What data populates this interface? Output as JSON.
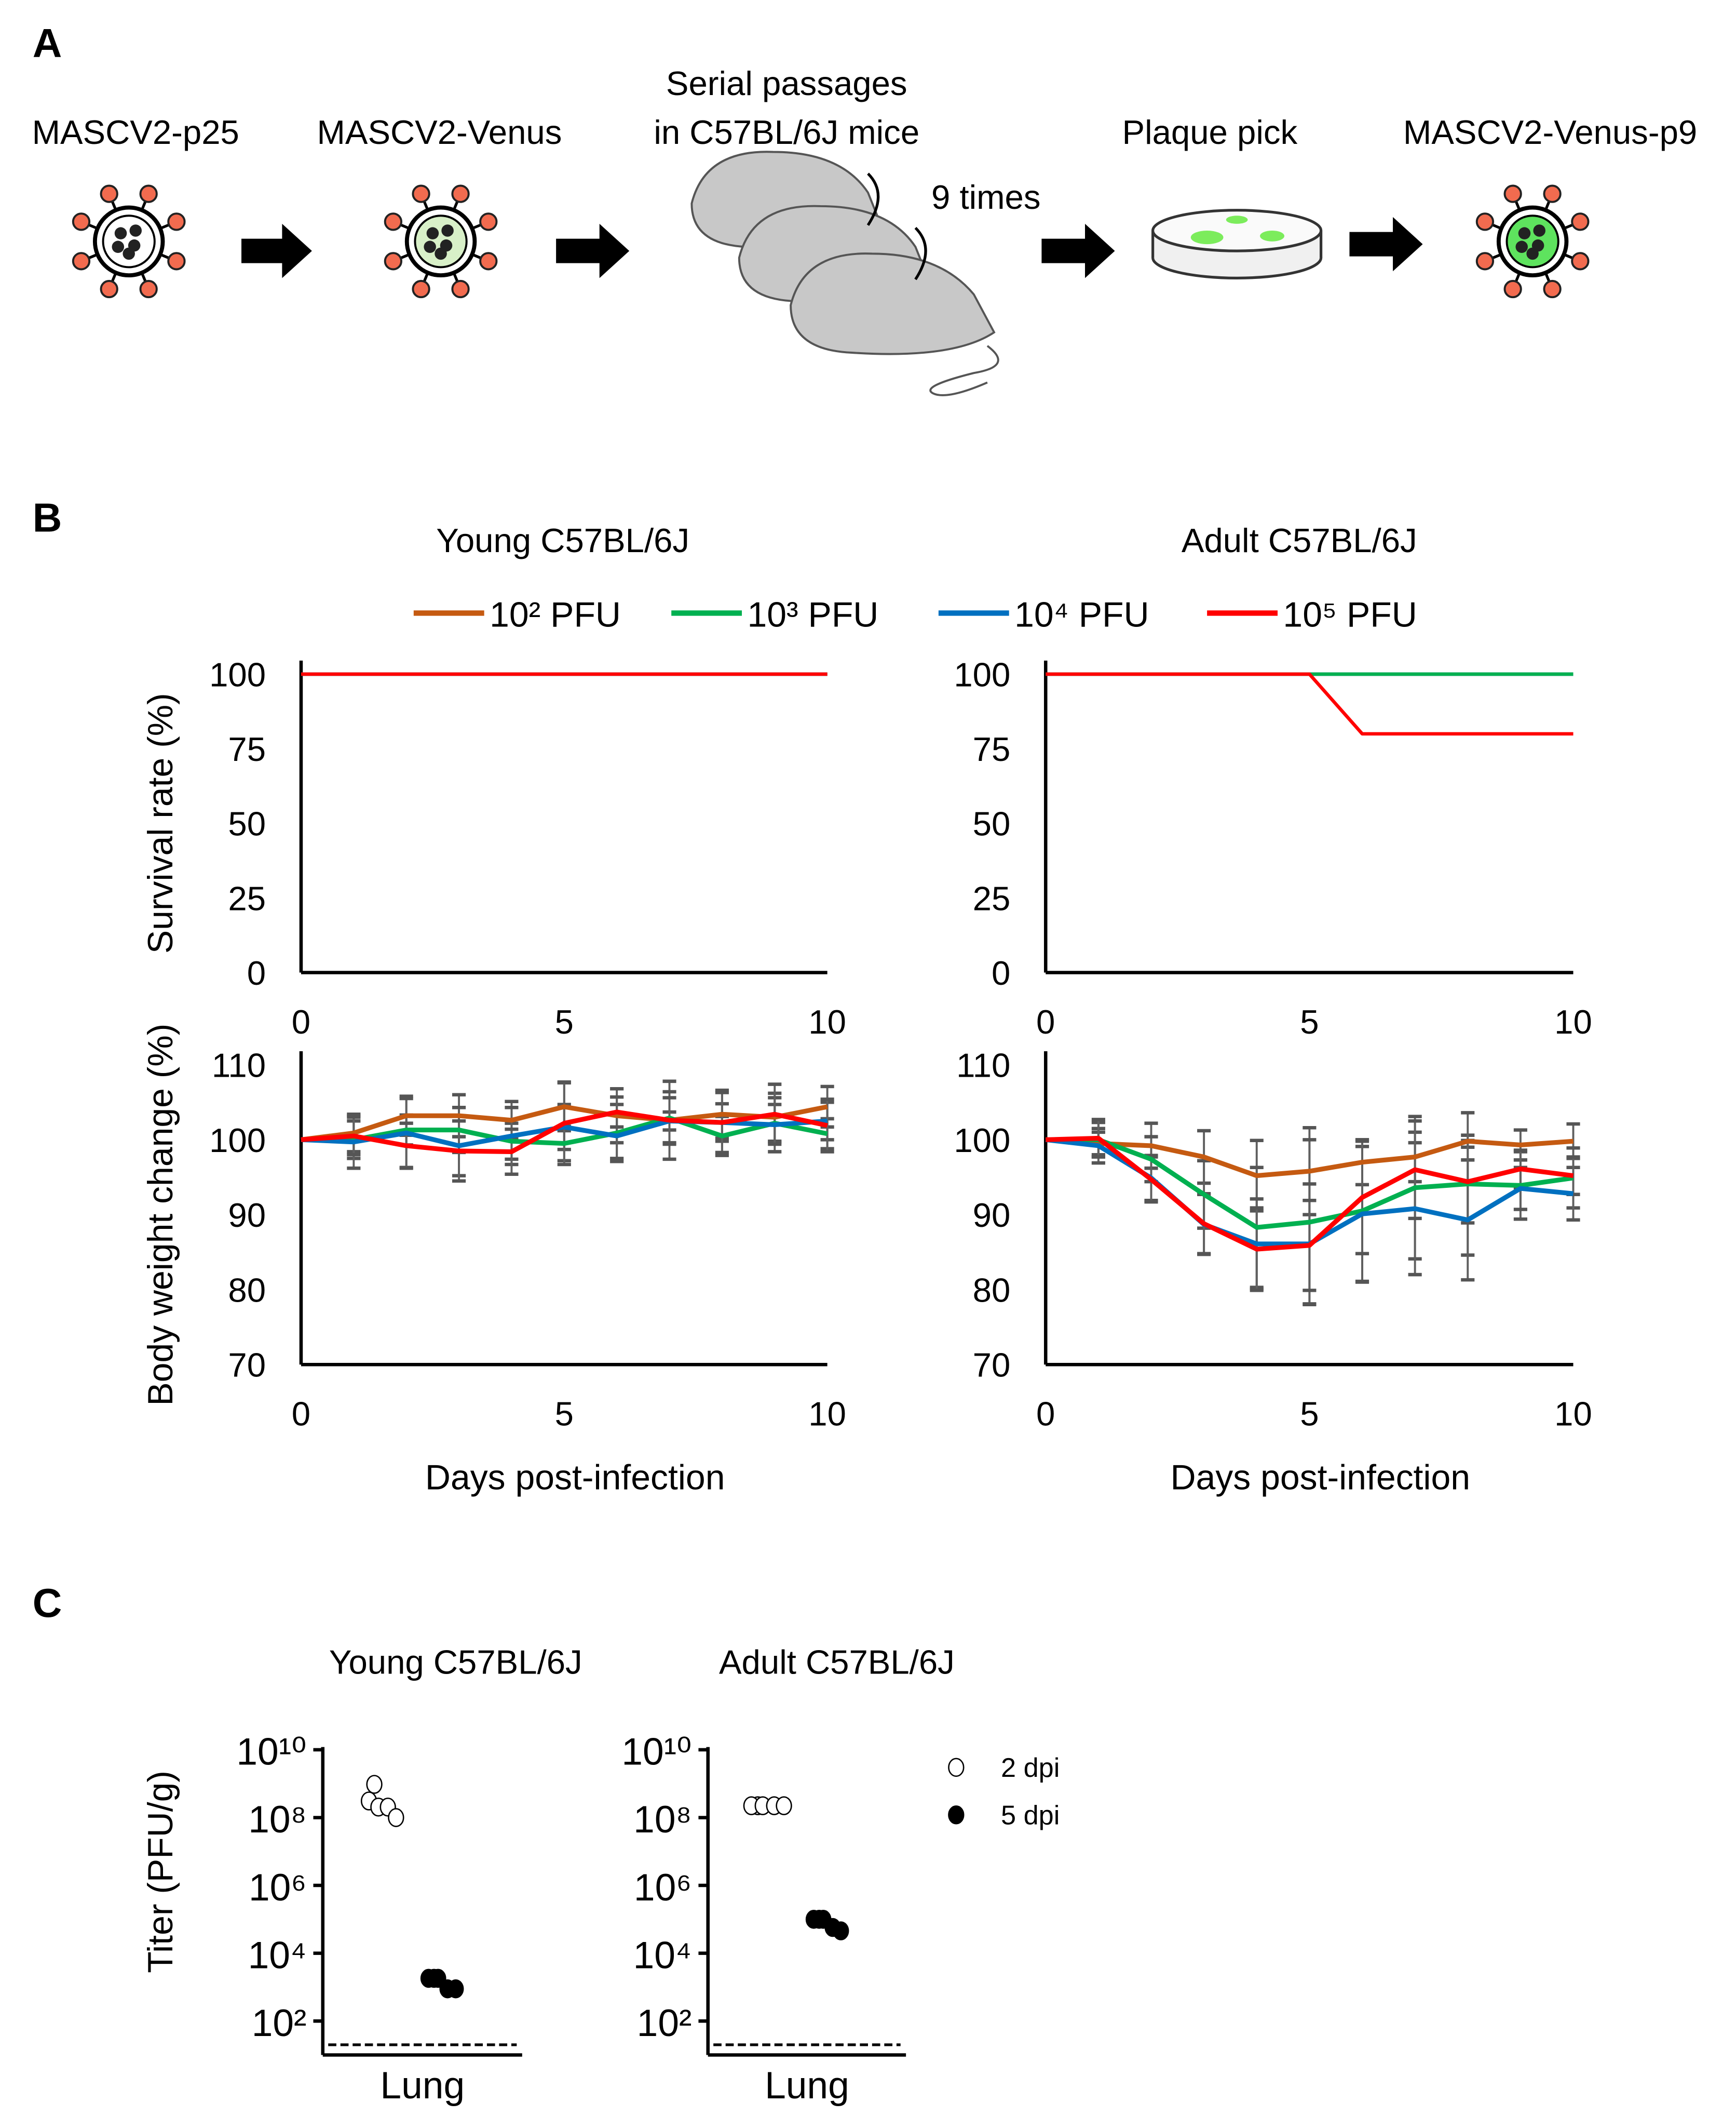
{
  "panel_a": {
    "letter": "A",
    "steps": [
      "MASCV2-p25",
      "MASCV2-Venus",
      "Serial passages",
      "in C57BL/6J mice",
      "Plaque pick",
      "MASCV2-Venus-p9"
    ],
    "repeat_label": "9 times",
    "colors": {
      "spike": "#f26b4f",
      "venus_light": "#d8f0c8",
      "venus_bright": "#5ee35e",
      "mouse": "#c8c8c8"
    }
  },
  "panel_b": {
    "letter": "B",
    "titles": [
      "Young C57BL/6J",
      "Adult C57BL/6J"
    ]
  },
  "panel_c": {
    "letter": "C",
    "titles": [
      "Young C57BL/6J",
      "Adult C57BL/6J"
    ]
  },
  "chart_data": [
    {
      "id": "legend_b",
      "type": "line",
      "legend": [
        {
          "label": "10² PFU",
          "color": "#c55a11"
        },
        {
          "label": "10³ PFU",
          "color": "#00b050"
        },
        {
          "label": "10⁴ PFU",
          "color": "#0070c0"
        },
        {
          "label": "10⁵ PFU",
          "color": "#ff0000"
        }
      ]
    },
    {
      "id": "survival_young",
      "type": "line",
      "title": "Young C57BL/6J",
      "ylabel": "Survival rate (%)",
      "xlabel": "",
      "xlim": [
        0,
        10
      ],
      "ylim": [
        0,
        100
      ],
      "xticks": [
        0,
        5,
        10
      ],
      "yticks": [
        0,
        25,
        50,
        75,
        100
      ],
      "x": [
        0,
        1,
        2,
        3,
        4,
        5,
        6,
        7,
        8,
        9,
        10
      ],
      "series": [
        {
          "name": "10² PFU",
          "values": [
            100,
            100,
            100,
            100,
            100,
            100,
            100,
            100,
            100,
            100,
            100
          ]
        },
        {
          "name": "10³ PFU",
          "values": [
            100,
            100,
            100,
            100,
            100,
            100,
            100,
            100,
            100,
            100,
            100
          ]
        },
        {
          "name": "10⁴ PFU",
          "values": [
            100,
            100,
            100,
            100,
            100,
            100,
            100,
            100,
            100,
            100,
            100
          ]
        },
        {
          "name": "10⁵ PFU",
          "values": [
            100,
            100,
            100,
            100,
            100,
            100,
            100,
            100,
            100,
            100,
            100
          ]
        }
      ]
    },
    {
      "id": "survival_adult",
      "type": "line",
      "title": "Adult C57BL/6J",
      "ylabel": "",
      "xlabel": "",
      "xlim": [
        0,
        10
      ],
      "ylim": [
        0,
        100
      ],
      "xticks": [
        0,
        5,
        10
      ],
      "yticks": [
        0,
        25,
        50,
        75,
        100
      ],
      "x": [
        0,
        1,
        2,
        3,
        4,
        5,
        6,
        7,
        8,
        9,
        10
      ],
      "series": [
        {
          "name": "10² PFU",
          "values": [
            100,
            100,
            100,
            100,
            100,
            100,
            100,
            100,
            100,
            100,
            100
          ]
        },
        {
          "name": "10⁴ PFU",
          "values": [
            100,
            100,
            100,
            100,
            100,
            100,
            100,
            100,
            100,
            100,
            100
          ]
        },
        {
          "name": "10³ PFU",
          "values": [
            100,
            100,
            100,
            100,
            100,
            100,
            100,
            100,
            100,
            100,
            100
          ]
        },
        {
          "name": "10⁵ PFU",
          "values": [
            100,
            100,
            100,
            100,
            100,
            100,
            80,
            80,
            80,
            80,
            80
          ]
        }
      ]
    },
    {
      "id": "weight_young",
      "type": "line",
      "ylabel": "Body weight change (%)",
      "xlabel": "Days post-infection",
      "xlim": [
        0,
        10
      ],
      "ylim": [
        70,
        110
      ],
      "xticks": [
        0,
        5,
        10
      ],
      "yticks": [
        70,
        80,
        90,
        100,
        110
      ],
      "x": [
        0,
        1,
        2,
        3,
        4,
        5,
        6,
        7,
        8,
        9,
        10
      ],
      "series": [
        {
          "name": "10² PFU",
          "values": [
            100,
            100.9,
            103.2,
            103.2,
            102.6,
            104.4,
            103.2,
            102.6,
            103.4,
            103.0,
            104.4
          ],
          "sd": [
            0,
            2.5,
            2.6,
            2.8,
            2.5,
            3.2,
            3.6,
            5.2,
            3.2,
            3.2,
            2.7
          ]
        },
        {
          "name": "10³ PFU",
          "values": [
            100,
            100.0,
            101.3,
            101.3,
            99.8,
            99.5,
            100.9,
            102.9,
            100.5,
            102.2,
            100.8
          ],
          "sd": [
            0,
            2.5,
            2.0,
            3.0,
            2.4,
            2.3,
            3.8,
            3.5,
            2.6,
            2.5,
            2.0
          ]
        },
        {
          "name": "10⁴ PFU",
          "values": [
            100,
            99.7,
            100.9,
            99.2,
            100.5,
            101.7,
            100.5,
            102.5,
            102.3,
            102.0,
            102.5
          ],
          "sd": [
            0,
            3.5,
            4.6,
            4.0,
            3.8,
            3.0,
            3.0,
            1.2,
            2.5,
            3.6,
            2.5
          ]
        },
        {
          "name": "10⁵ PFU",
          "values": [
            100,
            100.5,
            99.2,
            98.5,
            98.4,
            102.2,
            103.7,
            102.6,
            102.3,
            103.4,
            101.9
          ],
          "sd": [
            0,
            2.5,
            3.0,
            4.0,
            3.0,
            5.5,
            2.0,
            3.0,
            4.0,
            4.0,
            3.5
          ]
        }
      ]
    },
    {
      "id": "weight_adult",
      "type": "line",
      "ylabel": "",
      "xlabel": "Days post-infection",
      "xlim": [
        0,
        10
      ],
      "ylim": [
        70,
        110
      ],
      "xticks": [
        0,
        5,
        10
      ],
      "yticks": [
        70,
        80,
        90,
        100,
        110
      ],
      "x": [
        0,
        1,
        2,
        3,
        4,
        5,
        6,
        7,
        8,
        9,
        10
      ],
      "series": [
        {
          "name": "10² PFU",
          "values": [
            100,
            99.5,
            99.2,
            97.7,
            95.2,
            95.8,
            97.0,
            97.7,
            99.8,
            99.3,
            99.8
          ],
          "sd": [
            0,
            1.5,
            3.0,
            3.5,
            4.7,
            5.8,
            3.0,
            3.3,
            0.8,
            2.0,
            2.3
          ]
        },
        {
          "name": "10³ PFU",
          "values": [
            100,
            100,
            97.4,
            92.7,
            88.3,
            89.0,
            90.5,
            93.6,
            94.1,
            93.9,
            94.9
          ],
          "sd": [
            0,
            2.3,
            3.0,
            4.5,
            8.0,
            11.0,
            9.5,
            9.5,
            9.5,
            4.5,
            4.0
          ]
        },
        {
          "name": "10⁴ PFU",
          "values": [
            100,
            99.2,
            94.9,
            88.7,
            86.1,
            86.1,
            90.1,
            90.8,
            89.3,
            93.5,
            92.8
          ],
          "sd": [
            0,
            2.3,
            3.0,
            4.0,
            6.0,
            8.0,
            9.0,
            8.8,
            8.0,
            2.8,
            3.5
          ]
        },
        {
          "name": "10⁵ PFU",
          "values": [
            100,
            100.2,
            94.7,
            88.8,
            85.4,
            85.9,
            92.3,
            96.0,
            94.4,
            96.1,
            95.2
          ],
          "sd": [
            0,
            2.5,
            3.0,
            4.0,
            5.5,
            6.0,
            7.5,
            6.5,
            5.5,
            2.5,
            2.5
          ]
        }
      ]
    },
    {
      "id": "titer_young",
      "type": "scatter",
      "title": "Young C57BL/6J",
      "ylabel": "Titer (PFU/g)",
      "xlabel": "Lung",
      "yscale": "log",
      "ylim_log10": [
        1,
        10
      ],
      "yticks": [
        "10¹⁰",
        "10⁸",
        "10⁶",
        "10⁴",
        "10²"
      ],
      "ytick_values_log10": [
        10,
        8,
        6,
        4,
        2
      ],
      "detection_limit_log10": 1.3,
      "series": [
        {
          "name": "2 dpi",
          "log10_values": [
            8.98,
            8.49,
            8.31,
            8.31,
            8.0
          ],
          "filled": false
        },
        {
          "name": "5 dpi",
          "log10_values": [
            3.26,
            3.26,
            3.26,
            2.95,
            2.95
          ],
          "filled": true
        }
      ]
    },
    {
      "id": "titer_adult",
      "type": "scatter",
      "title": "Adult C57BL/6J",
      "ylabel": "",
      "xlabel": "Lung",
      "yscale": "log",
      "ylim_log10": [
        1,
        10
      ],
      "yticks": [
        "10¹⁰",
        "10⁸",
        "10⁶",
        "10⁴",
        "10²"
      ],
      "ytick_values_log10": [
        10,
        8,
        6,
        4,
        2
      ],
      "detection_limit_log10": 1.3,
      "series": [
        {
          "name": "2 dpi",
          "log10_values": [
            8.35,
            8.35,
            8.35,
            8.35,
            8.35
          ],
          "filled": false
        },
        {
          "name": "5 dpi",
          "log10_values": [
            5.0,
            5.0,
            5.0,
            4.76,
            4.66
          ],
          "filled": true
        }
      ],
      "legend": [
        {
          "label": "2 dpi",
          "filled": false
        },
        {
          "label": "5 dpi",
          "filled": true
        }
      ]
    }
  ]
}
